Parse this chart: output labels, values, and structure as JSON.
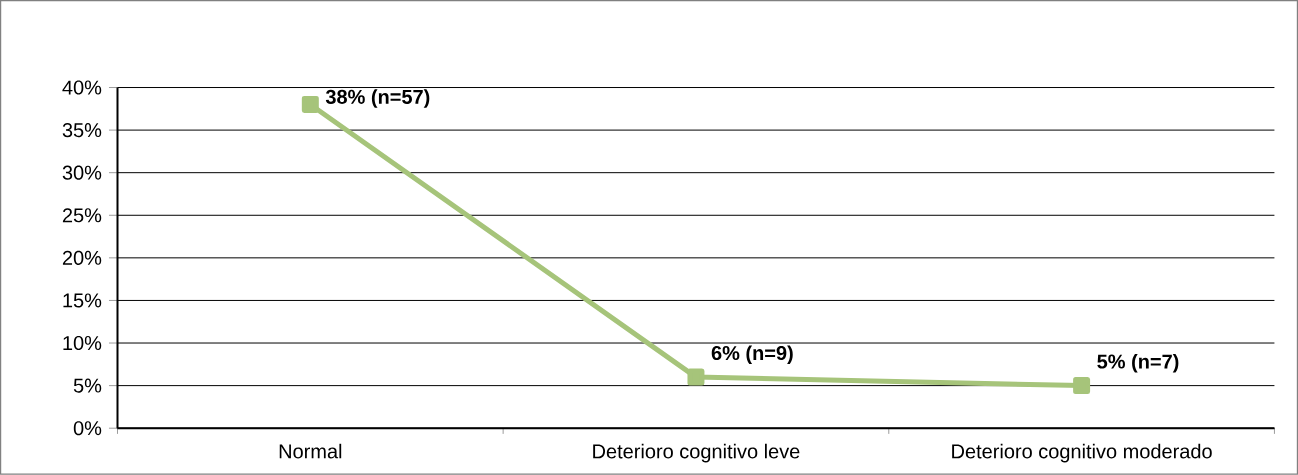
{
  "chart_data": {
    "type": "line",
    "categories": [
      "Normal",
      "Deterioro cognitivo leve",
      "Deterioro cognitivo moderado"
    ],
    "series": [
      {
        "color": "#a6c47a",
        "values": [
          38,
          6,
          5
        ],
        "value_labels": [
          "38% (n=57)",
          "6% (n=9)",
          "5% (n=7)"
        ]
      }
    ],
    "ylim": [
      0,
      40
    ],
    "yticks": [
      {
        "value": 0,
        "label": "0%"
      },
      {
        "value": 5,
        "label": "5%"
      },
      {
        "value": 10,
        "label": "10%"
      },
      {
        "value": 15,
        "label": "15%"
      },
      {
        "value": 20,
        "label": "20%"
      },
      {
        "value": 25,
        "label": "25%"
      },
      {
        "value": 30,
        "label": "30%"
      },
      {
        "value": 35,
        "label": "35%"
      },
      {
        "value": 40,
        "label": "40%"
      }
    ],
    "grid": "y",
    "marker": "square",
    "line_style": "solid"
  }
}
